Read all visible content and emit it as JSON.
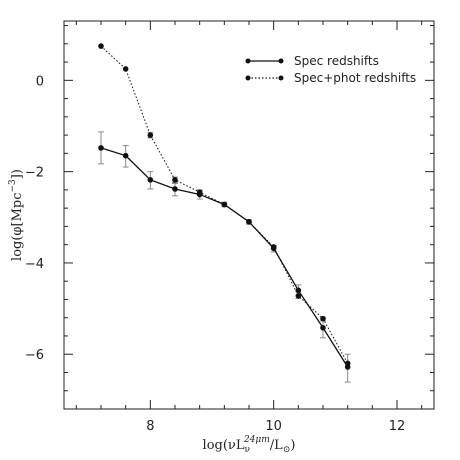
{
  "chart_data": {
    "type": "line",
    "xlabel_parts": [
      "log(νL",
      "ν",
      "24μm",
      "/L",
      "⊙",
      ")"
    ],
    "ylabel_parts": [
      "log(φ[Mpc",
      "−3",
      "])"
    ],
    "xlim": [
      6.6,
      12.6
    ],
    "ylim": [
      -7.2,
      1.3
    ],
    "xticks": [
      8,
      10,
      12
    ],
    "xtick_labels": [
      "8",
      "10",
      "12"
    ],
    "xminor_step": 0.4,
    "yticks": [
      0,
      -2,
      -4,
      -6
    ],
    "ytick_labels": [
      "0",
      "−2",
      "−4",
      "−6"
    ],
    "yminor_step": 0.4,
    "legend_position": "top-right",
    "series": [
      {
        "name": "Spec redshifts",
        "style": "solid",
        "color": "#111111",
        "x": [
          7.2,
          7.6,
          8.0,
          8.4,
          8.8,
          9.2,
          9.6,
          10.0,
          10.4,
          10.8,
          11.2
        ],
        "y": [
          -1.48,
          -1.65,
          -2.18,
          -2.38,
          -2.5,
          -2.72,
          -3.1,
          -3.68,
          -4.6,
          -5.42,
          -6.28
        ],
        "err_lo": [
          0.35,
          0.25,
          0.2,
          0.15,
          0.1,
          0.05,
          0.05,
          0.08,
          0.18,
          0.22,
          0.33
        ],
        "err_hi": [
          0.35,
          0.22,
          0.18,
          0.12,
          0.08,
          0.05,
          0.05,
          0.06,
          0.12,
          0.15,
          0.28
        ]
      },
      {
        "name": "Spec+phot redshifts",
        "style": "dotted",
        "color": "#111111",
        "x": [
          7.2,
          7.6,
          8.0,
          8.4,
          8.8,
          9.2,
          9.6,
          10.0,
          10.4,
          10.8,
          11.2
        ],
        "y": [
          0.75,
          0.25,
          -1.2,
          -2.18,
          -2.45,
          -2.72,
          -3.1,
          -3.65,
          -4.72,
          -5.22,
          -6.2
        ],
        "err_lo": [
          0,
          0,
          0.06,
          0.06,
          0.05,
          0,
          0,
          0,
          0,
          0,
          0
        ],
        "err_hi": [
          0,
          0,
          0.06,
          0.06,
          0.05,
          0,
          0,
          0,
          0,
          0,
          0
        ]
      }
    ]
  }
}
